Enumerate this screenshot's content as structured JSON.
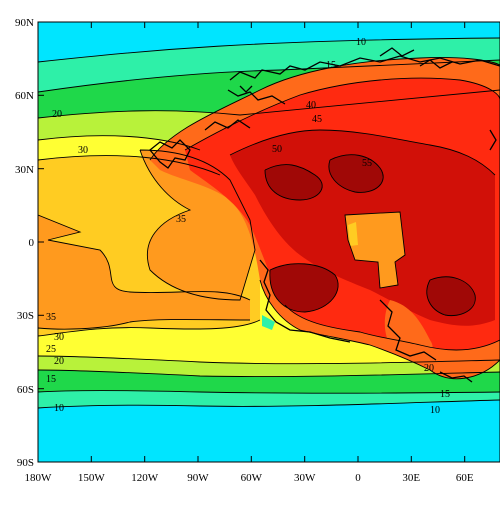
{
  "map": {
    "y_ticks": [
      "90N",
      "60N",
      "30N",
      "0",
      "30S",
      "60S",
      "90S"
    ],
    "x_ticks": [
      "180W",
      "150W",
      "120W",
      "90W",
      "60W",
      "30W",
      "0",
      "30E",
      "60E"
    ],
    "contour_labels": [
      "10",
      "15",
      "20",
      "30",
      "35",
      "40",
      "45",
      "50",
      "55",
      "35",
      "30",
      "25",
      "20",
      "15",
      "10",
      "20",
      "15",
      "10"
    ],
    "colors": {
      "ocean_cold": "#00e5ff",
      "cool": "#2ef0a8",
      "mild_green": "#1fd84a",
      "yellow_green": "#b8f23a",
      "yellow": "#ffff33",
      "light_orange": "#ffcc22",
      "orange": "#ff9a1e",
      "dark_orange": "#ff6a1a",
      "red": "#ff2a10",
      "dark_red": "#d11008",
      "deepest_red": "#a00806"
    }
  }
}
